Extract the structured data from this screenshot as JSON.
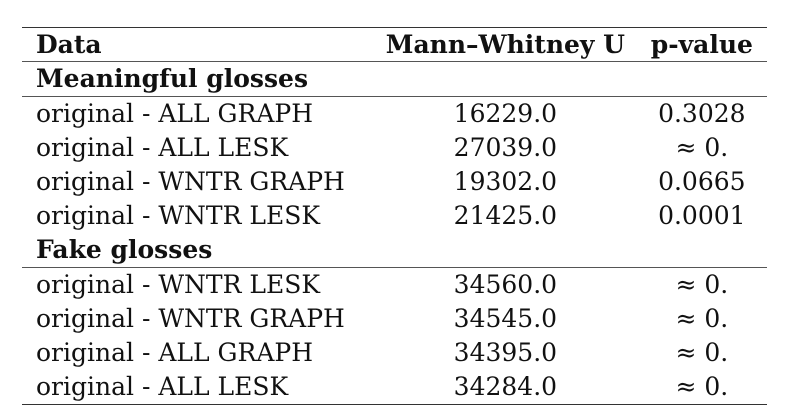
{
  "table": {
    "headers": {
      "data": "Data",
      "u": "Mann–Whitney U",
      "p": "p-value"
    },
    "sections": [
      {
        "title": "Meaningful glosses",
        "rows": [
          {
            "data": "original - ALL GRAPH",
            "u": "16229.0",
            "p": "0.3028"
          },
          {
            "data": "original - ALL LESK",
            "u": "27039.0",
            "p": "≈ 0."
          },
          {
            "data": "original - WNTR GRAPH",
            "u": "19302.0",
            "p": "0.0665"
          },
          {
            "data": "original - WNTR LESK",
            "u": "21425.0",
            "p": "0.0001"
          }
        ]
      },
      {
        "title": "Fake glosses",
        "rows": [
          {
            "data": "original - WNTR LESK",
            "u": "34560.0",
            "p": "≈ 0."
          },
          {
            "data": "original - WNTR GRAPH",
            "u": "34545.0",
            "p": "≈ 0."
          },
          {
            "data": "original - ALL GRAPH",
            "u": "34395.0",
            "p": "≈ 0."
          },
          {
            "data": "original - ALL LESK",
            "u": "34284.0",
            "p": "≈ 0."
          }
        ]
      }
    ]
  }
}
